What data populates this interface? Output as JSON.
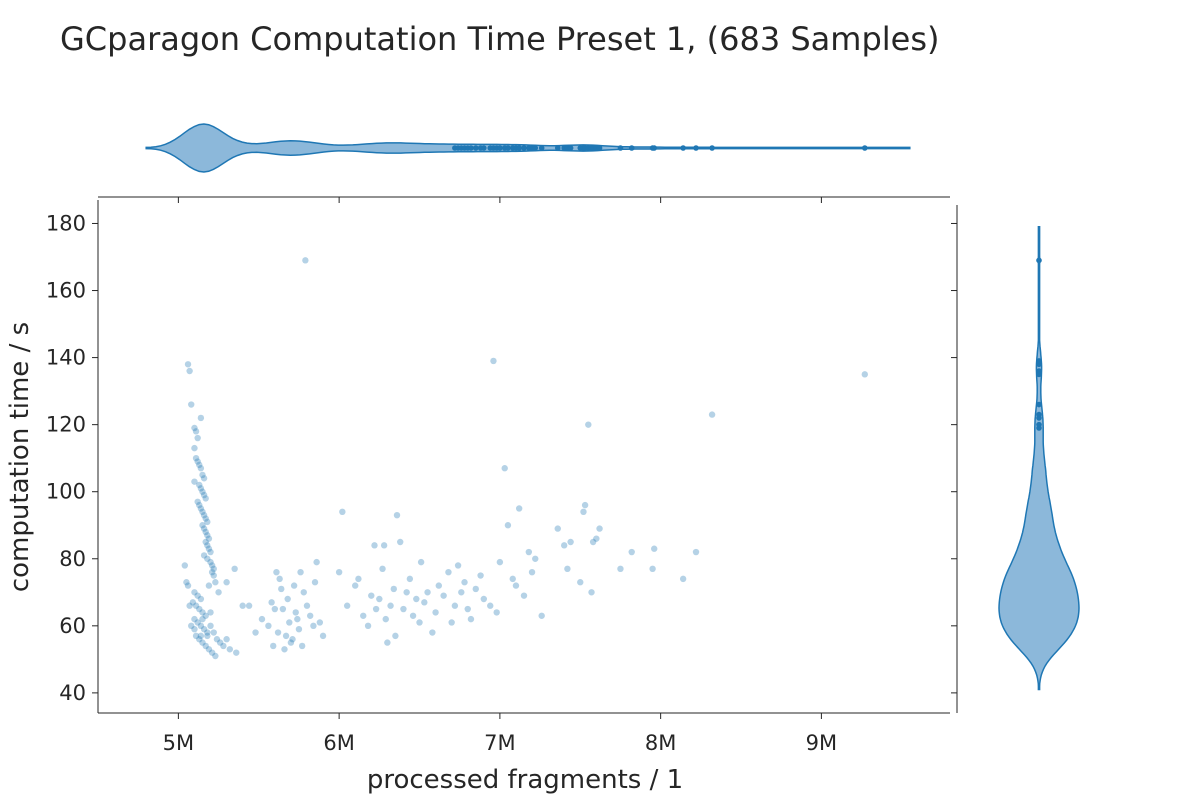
{
  "chart_data": {
    "type": "scatter",
    "title": "GCparagon Computation Time Preset 1, (683 Samples)",
    "xlabel": "processed fragments / 1",
    "ylabel": "computation time / s",
    "xlim": [
      4500000,
      9800000
    ],
    "ylim": [
      34,
      187
    ],
    "x_ticks": [
      5000000,
      6000000,
      7000000,
      8000000,
      9000000
    ],
    "x_tick_labels": [
      "5M",
      "6M",
      "7M",
      "8M",
      "9M"
    ],
    "y_ticks": [
      40,
      60,
      80,
      100,
      120,
      140,
      160,
      180
    ],
    "y_tick_labels": [
      "40",
      "60",
      "80",
      "100",
      "120",
      "140",
      "160",
      "180"
    ],
    "grid": false,
    "marginals": {
      "top": "violin of processed fragments",
      "right": "violin of computation time"
    },
    "color": "#1f77b4",
    "fill_color": "#8cb8da",
    "points": [
      [
        5040000,
        78
      ],
      [
        5050000,
        73
      ],
      [
        5060000,
        72
      ],
      [
        5070000,
        66
      ],
      [
        5080000,
        60
      ],
      [
        5060000,
        138
      ],
      [
        5070000,
        136
      ],
      [
        5080000,
        126
      ],
      [
        5140000,
        122
      ],
      [
        5100000,
        119
      ],
      [
        5110000,
        118
      ],
      [
        5120000,
        116
      ],
      [
        5100000,
        113
      ],
      [
        5110000,
        110
      ],
      [
        5120000,
        109
      ],
      [
        5130000,
        108
      ],
      [
        5140000,
        107
      ],
      [
        5150000,
        105
      ],
      [
        5160000,
        104
      ],
      [
        5100000,
        103
      ],
      [
        5130000,
        102
      ],
      [
        5140000,
        101
      ],
      [
        5150000,
        100
      ],
      [
        5160000,
        99
      ],
      [
        5170000,
        98
      ],
      [
        5120000,
        97
      ],
      [
        5130000,
        96
      ],
      [
        5140000,
        95
      ],
      [
        5150000,
        94
      ],
      [
        5160000,
        93
      ],
      [
        5170000,
        92
      ],
      [
        5180000,
        91
      ],
      [
        5150000,
        90
      ],
      [
        5160000,
        89
      ],
      [
        5170000,
        88
      ],
      [
        5180000,
        87
      ],
      [
        5190000,
        86
      ],
      [
        5170000,
        85
      ],
      [
        5180000,
        84
      ],
      [
        5190000,
        83
      ],
      [
        5200000,
        82
      ],
      [
        5160000,
        81
      ],
      [
        5180000,
        80
      ],
      [
        5200000,
        79
      ],
      [
        5210000,
        78
      ],
      [
        5220000,
        77
      ],
      [
        5210000,
        76
      ],
      [
        5220000,
        75
      ],
      [
        5230000,
        73
      ],
      [
        5190000,
        72
      ],
      [
        5100000,
        70
      ],
      [
        5120000,
        69
      ],
      [
        5140000,
        68
      ],
      [
        5090000,
        67
      ],
      [
        5110000,
        66
      ],
      [
        5130000,
        65
      ],
      [
        5150000,
        64
      ],
      [
        5170000,
        63
      ],
      [
        5100000,
        62
      ],
      [
        5120000,
        61
      ],
      [
        5140000,
        60
      ],
      [
        5160000,
        59
      ],
      [
        5180000,
        58
      ],
      [
        5110000,
        57
      ],
      [
        5130000,
        56
      ],
      [
        5150000,
        55
      ],
      [
        5170000,
        54
      ],
      [
        5190000,
        53
      ],
      [
        5210000,
        52
      ],
      [
        5230000,
        51
      ],
      [
        5200000,
        60
      ],
      [
        5220000,
        58
      ],
      [
        5240000,
        56
      ],
      [
        5260000,
        55
      ],
      [
        5280000,
        54
      ],
      [
        5300000,
        56
      ],
      [
        5320000,
        53
      ],
      [
        5360000,
        52
      ],
      [
        5350000,
        77
      ],
      [
        5300000,
        73
      ],
      [
        5250000,
        70
      ],
      [
        5200000,
        64
      ],
      [
        5150000,
        62
      ],
      [
        5180000,
        57
      ],
      [
        5100000,
        59
      ],
      [
        5140000,
        57
      ],
      [
        5400000,
        66
      ],
      [
        5440000,
        66
      ],
      [
        5480000,
        58
      ],
      [
        5520000,
        62
      ],
      [
        5560000,
        60
      ],
      [
        5590000,
        54
      ],
      [
        5610000,
        76
      ],
      [
        5630000,
        74
      ],
      [
        5650000,
        65
      ],
      [
        5670000,
        57
      ],
      [
        5690000,
        61
      ],
      [
        5710000,
        56
      ],
      [
        5730000,
        64
      ],
      [
        5750000,
        59
      ],
      [
        5760000,
        76
      ],
      [
        5780000,
        70
      ],
      [
        5790000,
        169
      ],
      [
        5800000,
        66
      ],
      [
        5820000,
        63
      ],
      [
        5840000,
        60
      ],
      [
        5860000,
        79
      ],
      [
        5880000,
        61
      ],
      [
        5900000,
        57
      ],
      [
        5680000,
        68
      ],
      [
        5720000,
        72
      ],
      [
        5660000,
        53
      ],
      [
        5700000,
        55
      ],
      [
        5740000,
        62
      ],
      [
        5600000,
        65
      ],
      [
        5580000,
        67
      ],
      [
        5620000,
        58
      ],
      [
        5770000,
        54
      ],
      [
        5850000,
        73
      ],
      [
        5640000,
        71
      ],
      [
        6000000,
        76
      ],
      [
        6020000,
        94
      ],
      [
        6050000,
        66
      ],
      [
        6100000,
        72
      ],
      [
        6120000,
        74
      ],
      [
        6150000,
        63
      ],
      [
        6180000,
        60
      ],
      [
        6200000,
        69
      ],
      [
        6220000,
        84
      ],
      [
        6230000,
        65
      ],
      [
        6250000,
        68
      ],
      [
        6270000,
        77
      ],
      [
        6280000,
        84
      ],
      [
        6290000,
        62
      ],
      [
        6300000,
        55
      ],
      [
        6320000,
        66
      ],
      [
        6340000,
        71
      ],
      [
        6350000,
        57
      ],
      [
        6360000,
        93
      ],
      [
        6380000,
        85
      ],
      [
        6400000,
        65
      ],
      [
        6420000,
        70
      ],
      [
        6440000,
        74
      ],
      [
        6460000,
        63
      ],
      [
        6480000,
        68
      ],
      [
        6500000,
        61
      ],
      [
        6510000,
        79
      ],
      [
        6530000,
        67
      ],
      [
        6550000,
        70
      ],
      [
        6580000,
        58
      ],
      [
        6600000,
        64
      ],
      [
        6620000,
        72
      ],
      [
        6650000,
        69
      ],
      [
        6680000,
        76
      ],
      [
        6700000,
        61
      ],
      [
        6720000,
        66
      ],
      [
        6740000,
        78
      ],
      [
        6760000,
        70
      ],
      [
        6780000,
        73
      ],
      [
        6800000,
        65
      ],
      [
        6820000,
        62
      ],
      [
        6850000,
        71
      ],
      [
        6880000,
        75
      ],
      [
        6900000,
        68
      ],
      [
        6940000,
        66
      ],
      [
        6960000,
        139
      ],
      [
        6980000,
        64
      ],
      [
        7000000,
        79
      ],
      [
        7030000,
        107
      ],
      [
        7050000,
        90
      ],
      [
        7080000,
        74
      ],
      [
        7100000,
        72
      ],
      [
        7120000,
        95
      ],
      [
        7150000,
        69
      ],
      [
        7180000,
        82
      ],
      [
        7200000,
        76
      ],
      [
        7220000,
        80
      ],
      [
        7260000,
        63
      ],
      [
        7360000,
        89
      ],
      [
        7400000,
        84
      ],
      [
        7420000,
        77
      ],
      [
        7440000,
        85
      ],
      [
        7500000,
        73
      ],
      [
        7520000,
        94
      ],
      [
        7530000,
        96
      ],
      [
        7550000,
        120
      ],
      [
        7570000,
        70
      ],
      [
        7580000,
        85
      ],
      [
        7600000,
        86
      ],
      [
        7620000,
        89
      ],
      [
        7750000,
        77
      ],
      [
        7820000,
        82
      ],
      [
        7950000,
        77
      ],
      [
        7960000,
        83
      ],
      [
        8140000,
        74
      ],
      [
        8220000,
        82
      ],
      [
        8320000,
        123
      ],
      [
        9270000,
        135
      ]
    ]
  }
}
